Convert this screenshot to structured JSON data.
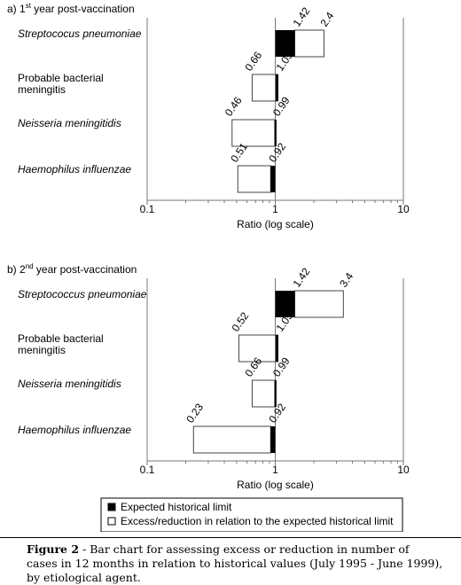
{
  "chart_data": [
    {
      "type": "bar",
      "title_prefix": "a) 1",
      "title_sup": "st",
      "title_suffix": " year post-vaccination",
      "xlabel": "Ratio (log scale)",
      "x_scale": "log",
      "xlim": [
        0.1,
        10
      ],
      "x_ticks": [
        "0.1",
        "1",
        "10"
      ],
      "categories": [
        {
          "label": "Streptococus pneumoniae",
          "italic": true
        },
        {
          "label": "Probable bacterial meningitis",
          "italic": false
        },
        {
          "label": "Neisseria meningitidis",
          "italic": true
        },
        {
          "label": "Haemophilus influenzae",
          "italic": true
        }
      ],
      "series": [
        {
          "name": "Expected historical limit",
          "values": [
            1.42,
            1.05,
            0.99,
            0.92
          ]
        },
        {
          "name": "Excess/reduction in relation to the expected historical limit",
          "values": [
            2.4,
            0.66,
            0.46,
            0.51
          ]
        }
      ]
    },
    {
      "type": "bar",
      "title_prefix": "b) 2",
      "title_sup": "nd",
      "title_suffix": "  year post-vaccination",
      "xlabel": "Ratio (log scale)",
      "x_scale": "log",
      "xlim": [
        0.1,
        10
      ],
      "x_ticks": [
        "0.1",
        "1",
        "10"
      ],
      "categories": [
        {
          "label": "Streptococcus pneumoniae",
          "italic": true
        },
        {
          "label": "Probable bacterial meningitis",
          "italic": false
        },
        {
          "label": "Neisseria meningitidis",
          "italic": true
        },
        {
          "label": "Haemophilus influenzae",
          "italic": true
        }
      ],
      "series": [
        {
          "name": "Expected historical limit",
          "values": [
            1.42,
            1.05,
            0.99,
            0.92
          ]
        },
        {
          "name": "Excess/reduction in relation to the expected historical limit",
          "values": [
            3.4,
            0.52,
            0.66,
            0.23
          ]
        }
      ]
    }
  ],
  "legend": {
    "items": [
      {
        "label": "Expected historical limit",
        "symbol": "■",
        "fill": "#000000"
      },
      {
        "label": "Excess/reduction in relation to the expected historical limit",
        "symbol": "□",
        "fill": "#ffffff"
      }
    ]
  },
  "caption": {
    "label": "Figure 2",
    "text": " - Bar chart for assessing excess or reduction in number of cases in 12 months in relation to historical values (July 1995 - June 1999), by etiological agent."
  }
}
